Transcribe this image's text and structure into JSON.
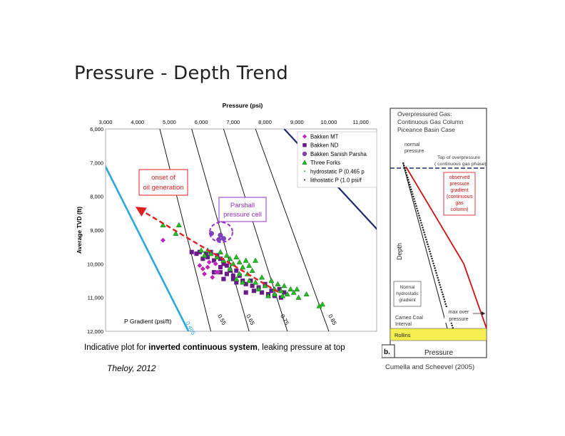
{
  "slide": {
    "title": "Pressure - Depth Trend",
    "caption_prefix": "Indicative plot for ",
    "caption_bold": "inverted continuous system",
    "caption_suffix": ", leaking pressure at top",
    "citation_left": "Theloy, 2012",
    "citation_right": "Cumella and Scheevel (2005)"
  },
  "chart_data": [
    {
      "type": "scatter",
      "title": "Pressure (psi)",
      "xlabel": "Pressure (psi)",
      "ylabel": "Average TVD (ft)",
      "x_ticks": [
        "3,000",
        "4,000",
        "5,000",
        "6,000",
        "7,000",
        "8,000",
        "9,000",
        "10,000",
        "11,000"
      ],
      "y_ticks": [
        "6,000",
        "7,000",
        "8,000",
        "9,000",
        "10,000",
        "11,000",
        "12,000"
      ],
      "xlim": [
        3000,
        11500
      ],
      "ylim": [
        6000,
        12000
      ],
      "y_reversed": true,
      "gradient_axis_label": "P Gradient (psi/ft)",
      "gradient_lines": [
        {
          "label": "0.465",
          "color": "#29a8e0"
        },
        {
          "label": "0.55",
          "color": "#000000"
        },
        {
          "label": "0.65",
          "color": "#000000"
        },
        {
          "label": "0.75",
          "color": "#000000"
        },
        {
          "label": "0.85",
          "color": "#000000"
        },
        {
          "label": "",
          "color": "#1f2a6e"
        }
      ],
      "legend": {
        "placement": "top-right",
        "entries": [
          {
            "label": "Bakken MT",
            "marker": "diamond",
            "color": "#c020c0"
          },
          {
            "label": "Bakken ND",
            "marker": "square",
            "color": "#6a1a8a"
          },
          {
            "label": "Bakken Sanish Parsha",
            "marker": "circle",
            "color": "#8040c0"
          },
          {
            "label": "Three Forks",
            "marker": "triangle",
            "color": "#22c022"
          },
          {
            "label": "hydrostatic P (0.465 p",
            "marker": "dot",
            "color": "#22c022"
          },
          {
            "label": "lithostatic P (1.0 psi/f",
            "marker": "dot",
            "color": "#000000"
          }
        ]
      },
      "annotations": [
        {
          "text_lines": [
            "onset of",
            "oil generation"
          ],
          "color": "#e02020"
        },
        {
          "text_lines": [
            "Parshall",
            "pressure cell"
          ],
          "color": "#9a30c8"
        }
      ],
      "series": [
        {
          "name": "Bakken MT",
          "marker": "diamond",
          "color": "#c020c0",
          "points": [
            [
              4800,
              9300
            ],
            [
              5950,
              10050
            ],
            [
              6050,
              10150
            ],
            [
              6100,
              10300
            ],
            [
              6200,
              10100
            ],
            [
              6250,
              9950
            ],
            [
              6350,
              10400
            ],
            [
              6450,
              10000
            ],
            [
              6500,
              10250
            ]
          ]
        },
        {
          "name": "Bakken ND",
          "marker": "square",
          "color": "#6a1a8a",
          "points": [
            [
              5700,
              9650
            ],
            [
              5850,
              9700
            ],
            [
              5950,
              9650
            ],
            [
              6050,
              9850
            ],
            [
              6150,
              9700
            ],
            [
              6300,
              9650
            ],
            [
              6400,
              9900
            ],
            [
              6500,
              9750
            ],
            [
              6600,
              9850
            ],
            [
              6700,
              10000
            ],
            [
              6800,
              10050
            ],
            [
              6900,
              10200
            ],
            [
              6400,
              10250
            ],
            [
              6600,
              10250
            ],
            [
              6800,
              10300
            ],
            [
              7000,
              10350
            ],
            [
              7100,
              10200
            ],
            [
              7200,
              10350
            ],
            [
              6700,
              10450
            ],
            [
              7000,
              10450
            ],
            [
              7300,
              10500
            ],
            [
              7400,
              10600
            ],
            [
              7600,
              10650
            ],
            [
              7800,
              10700
            ],
            [
              7400,
              10850
            ],
            [
              7650,
              10800
            ],
            [
              7900,
              10850
            ],
            [
              8100,
              10900
            ],
            [
              8300,
              10950
            ],
            [
              8600,
              10850
            ],
            [
              8500,
              11000
            ],
            [
              8000,
              10600
            ],
            [
              8200,
              10800
            ],
            [
              6200,
              9800
            ],
            [
              6600,
              10100
            ],
            [
              7100,
              10550
            ],
            [
              7550,
              10500
            ],
            [
              8450,
              10750
            ]
          ]
        },
        {
          "name": "Bakken Sanish Parsha",
          "marker": "circle",
          "color": "#8040c0",
          "points": [
            [
              6320,
              9100
            ],
            [
              6600,
              9150
            ],
            [
              6700,
              9250
            ],
            [
              6550,
              9280
            ]
          ]
        },
        {
          "name": "Three Forks",
          "marker": "triangle",
          "color": "#22c022",
          "points": [
            [
              4800,
              8850
            ],
            [
              5200,
              9100
            ],
            [
              5300,
              8850
            ],
            [
              6200,
              9600
            ],
            [
              6300,
              9700
            ],
            [
              6500,
              9800
            ],
            [
              6600,
              9650
            ],
            [
              6700,
              9900
            ],
            [
              6800,
              9750
            ],
            [
              6900,
              9850
            ],
            [
              7000,
              10000
            ],
            [
              7100,
              9800
            ],
            [
              7200,
              9950
            ],
            [
              7300,
              10100
            ],
            [
              7400,
              9900
            ],
            [
              7500,
              10050
            ],
            [
              7600,
              10200
            ],
            [
              7700,
              9900
            ],
            [
              7450,
              10300
            ],
            [
              7200,
              10300
            ],
            [
              6900,
              10150
            ],
            [
              7100,
              10450
            ],
            [
              7500,
              10500
            ],
            [
              7300,
              10550
            ],
            [
              7700,
              10550
            ],
            [
              7900,
              10400
            ],
            [
              8000,
              10650
            ],
            [
              8200,
              10500
            ],
            [
              8300,
              10750
            ],
            [
              8400,
              10600
            ],
            [
              8500,
              10800
            ],
            [
              8600,
              10650
            ],
            [
              8700,
              10900
            ],
            [
              8800,
              10750
            ],
            [
              8900,
              10850
            ],
            [
              8550,
              10950
            ],
            [
              8300,
              10900
            ],
            [
              9000,
              10750
            ],
            [
              9050,
              11000
            ],
            [
              9300,
              10900
            ],
            [
              9700,
              11250
            ],
            [
              9800,
              11200
            ],
            [
              6000,
              9600
            ],
            [
              6100,
              9750
            ],
            [
              7800,
              10750
            ],
            [
              8100,
              10950
            ]
          ]
        }
      ]
    },
    {
      "type": "line",
      "panel_label": "b.",
      "title_lines": [
        "Overpressured Gas:",
        "Continuous Gas Column",
        "Piceance Basin Case"
      ],
      "xlabel": "Pressure",
      "ylabel": "Depth",
      "labels": {
        "normal_pressure": [
          "normal",
          "pressure"
        ],
        "top_overpressure": [
          "Top of overpressure",
          "( continuous gas phase)"
        ],
        "observed": [
          "observed",
          "pressure",
          "gradient",
          "(continuous",
          "gas",
          "column)"
        ],
        "normal_hydrostatic": [
          "Normal",
          "hydrostatic",
          "gradient"
        ],
        "cameo": [
          "Cameo Coal",
          "Interval"
        ],
        "max_over": [
          "max over",
          "pressure"
        ],
        "rollins": "Rollins"
      },
      "colors": {
        "observed": "#d01010",
        "rollins": "#f5ee50",
        "top_line": "#1f2a6e"
      }
    }
  ]
}
